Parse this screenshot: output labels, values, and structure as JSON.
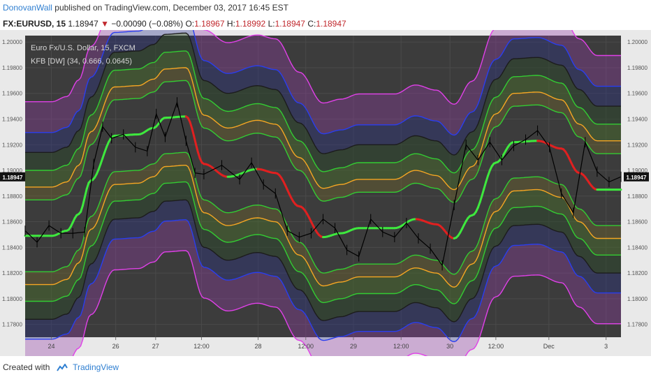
{
  "header": {
    "author": "DonovanWall",
    "publish_text": "published on TradingView.com, December 03, 2017 16:45 EST"
  },
  "ticker": {
    "symbol": "FX:EURUSD, 15",
    "last": "1.18947",
    "arrow": "▼",
    "change": "−0.00090 (−0.08%)",
    "o_label": "O:",
    "o_value": "1.18967",
    "h_label": "H:",
    "h_value": "1.18992",
    "l_label": "L:",
    "l_value": "1.18947",
    "c_label": "C:",
    "c_value": "1.18947"
  },
  "footer": {
    "created_with": "Created with",
    "brand": "TradingView",
    "icon": "tradingview-logo-icon"
  },
  "colors": {
    "plot_bg": "#3c3c3c",
    "frame_bg": "#e9e9e9",
    "magenta": "#e040e8",
    "blue": "#2a3ef0",
    "dark": "#1c1c1c",
    "green": "#33cc33",
    "orange": "#f5a623",
    "midline_up": "#3ee83e",
    "midline_down": "#e02020",
    "price_tag_bg": "#111111"
  },
  "chart_data": {
    "type": "line",
    "title": "Euro Fx/U.S. Dollar, 15, FXCM",
    "indicator_label": "KFB [DW] (34, 0.666, 0.0645)",
    "ylim": [
      1.177,
      1.2005
    ],
    "y_ticks": [
      "1.20000",
      "1.19800",
      "1.19600",
      "1.19400",
      "1.19200",
      "1.19000",
      "1.18800",
      "1.18600",
      "1.18400",
      "1.18200",
      "1.18000",
      "1.17800"
    ],
    "y_tick_values": [
      1.2,
      1.198,
      1.196,
      1.194,
      1.192,
      1.19,
      1.188,
      1.186,
      1.184,
      1.182,
      1.18,
      1.178
    ],
    "last_price_tag": "1.18947",
    "last_price": 1.18947,
    "x_ticks": [
      "24",
      "26",
      "27",
      "12:00",
      "28",
      "12:00",
      "29",
      "12:00",
      "30",
      "12:00",
      "Dec",
      "3"
    ],
    "x_tick_positions_pct": [
      0.044,
      0.152,
      0.219,
      0.296,
      0.391,
      0.471,
      0.551,
      0.631,
      0.713,
      0.79,
      0.879,
      0.975
    ],
    "grid": true,
    "legend": "top-left",
    "x_pct": [
      0,
      0.045,
      0.07,
      0.09,
      0.11,
      0.15,
      0.19,
      0.215,
      0.235,
      0.27,
      0.3,
      0.34,
      0.39,
      0.42,
      0.46,
      0.5,
      0.53,
      0.56,
      0.59,
      0.62,
      0.655,
      0.69,
      0.72,
      0.75,
      0.79,
      0.82,
      0.86,
      0.9,
      0.93,
      0.96,
      1.0
    ],
    "midline": [
      1.1849,
      1.1849,
      1.1853,
      1.1866,
      1.1892,
      1.1927,
      1.1928,
      1.1933,
      1.1941,
      1.1942,
      1.1905,
      1.1895,
      1.1901,
      1.1898,
      1.1872,
      1.1848,
      1.1851,
      1.1855,
      1.1855,
      1.1855,
      1.1862,
      1.1858,
      1.1847,
      1.1865,
      1.1906,
      1.1922,
      1.1923,
      1.1917,
      1.1898,
      1.1885,
      1.1885
    ],
    "band_offsets": [
      -0.01045,
      -0.00805,
      -0.0065,
      -0.0051,
      -0.0038,
      -0.0028,
      0.0028,
      0.0038,
      0.0051,
      0.0065,
      0.00805,
      0.01045
    ],
    "band_colors": [
      "magenta",
      "blue",
      "dark",
      "green",
      "orange",
      "green",
      "green",
      "orange",
      "green",
      "dark",
      "blue",
      "magenta"
    ],
    "band_names": [
      "lower-band-6",
      "lower-band-5",
      "lower-band-4",
      "lower-band-3",
      "lower-band-2",
      "lower-band-1",
      "upper-band-1",
      "upper-band-2",
      "upper-band-3",
      "upper-band-4",
      "upper-band-5",
      "upper-band-6"
    ],
    "price_pct": [
      0,
      0.02,
      0.04,
      0.06,
      0.08,
      0.1,
      0.115,
      0.13,
      0.145,
      0.165,
      0.185,
      0.205,
      0.22,
      0.235,
      0.255,
      0.27,
      0.285,
      0.3,
      0.33,
      0.36,
      0.38,
      0.4,
      0.42,
      0.44,
      0.46,
      0.48,
      0.5,
      0.52,
      0.54,
      0.56,
      0.58,
      0.6,
      0.62,
      0.64,
      0.66,
      0.68,
      0.7,
      0.72,
      0.74,
      0.76,
      0.78,
      0.8,
      0.82,
      0.84,
      0.86,
      0.88,
      0.9,
      0.92,
      0.94,
      0.96,
      0.98,
      1.0
    ],
    "price": [
      1.1853,
      1.1844,
      1.1857,
      1.1851,
      1.1851,
      1.1852,
      1.1905,
      1.1934,
      1.1925,
      1.1928,
      1.1918,
      1.1915,
      1.1944,
      1.1926,
      1.1953,
      1.1923,
      1.1898,
      1.1897,
      1.1904,
      1.1893,
      1.1906,
      1.1889,
      1.1882,
      1.1853,
      1.1848,
      1.1851,
      1.1862,
      1.1855,
      1.1838,
      1.1833,
      1.1862,
      1.1852,
      1.1848,
      1.1859,
      1.1847,
      1.1839,
      1.1826,
      1.1873,
      1.192,
      1.1908,
      1.1922,
      1.1908,
      1.1919,
      1.1924,
      1.1931,
      1.1918,
      1.1882,
      1.1867,
      1.1922,
      1.1899,
      1.1891,
      1.1895
    ]
  }
}
